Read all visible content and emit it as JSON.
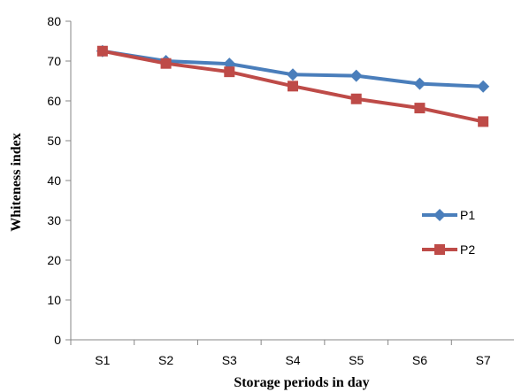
{
  "chart_data": {
    "type": "line",
    "categories": [
      "S1",
      "S2",
      "S3",
      "S4",
      "S5",
      "S6",
      "S7"
    ],
    "series": [
      {
        "name": "P1",
        "values": [
          72.5,
          70.0,
          69.3,
          66.6,
          66.3,
          64.3,
          63.6
        ],
        "color": "#4a7ebb",
        "marker": "diamond"
      },
      {
        "name": "P2",
        "values": [
          72.5,
          69.4,
          67.3,
          63.7,
          60.5,
          58.2,
          54.8
        ],
        "color": "#be4b48",
        "marker": "square"
      }
    ],
    "xlabel": "Storage periods in day",
    "ylabel": "Whiteness index",
    "ylim": [
      0,
      80
    ],
    "yticks": [
      "0",
      "10",
      "20",
      "30",
      "40",
      "50",
      "60",
      "70",
      "80"
    ],
    "grid": false,
    "legend_position": "right"
  }
}
